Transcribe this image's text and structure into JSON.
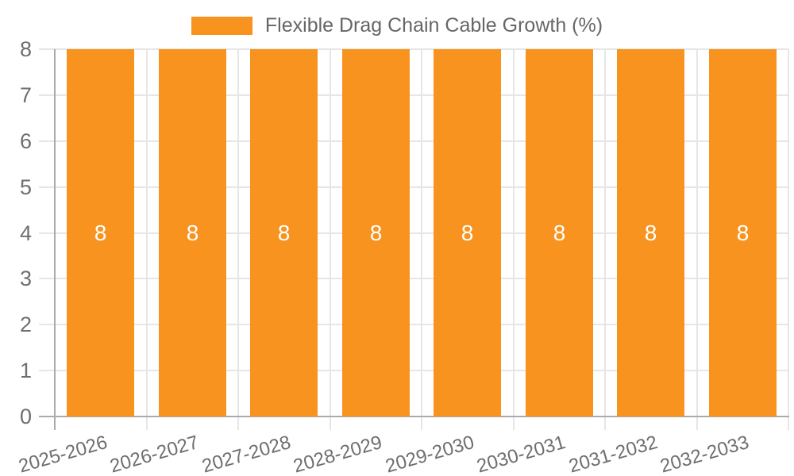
{
  "chart_data": {
    "type": "bar",
    "title": "Flexible Drag Chain Cable Growth (%)",
    "legend": {
      "position": "top",
      "items": [
        {
          "label": "Flexible Drag Chain Cable Growth (%)",
          "color": "#f7931e"
        }
      ]
    },
    "categories": [
      "2025-2026",
      "2026-2027",
      "2027-2028",
      "2028-2029",
      "2029-2030",
      "2030-2031",
      "2031-2032",
      "2032-2033"
    ],
    "series": [
      {
        "name": "Flexible Drag Chain Cable Growth (%)",
        "values": [
          8,
          8,
          8,
          8,
          8,
          8,
          8,
          8
        ],
        "color": "#f7931e"
      }
    ],
    "bar_value_labels": [
      "8",
      "8",
      "8",
      "8",
      "8",
      "8",
      "8",
      "8"
    ],
    "xlabel": "",
    "ylabel": "",
    "ylim": [
      0,
      8
    ],
    "yticks": [
      0,
      1,
      2,
      3,
      4,
      5,
      6,
      7,
      8
    ],
    "grid": true,
    "colors": {
      "bar": "#f7931e",
      "bar_label": "#ffffff",
      "grid": "#e6e6e6",
      "axis": "#ababab",
      "text": "#6e6e6e",
      "legend_text": "#666666",
      "background": "#ffffff"
    }
  }
}
